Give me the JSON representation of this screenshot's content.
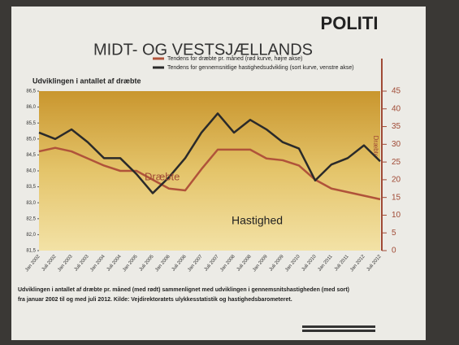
{
  "header": {
    "title": "MIDT- OG VESTSJÆLLANDS",
    "logo": "POLITI"
  },
  "caption": [
    "Udviklingen i antallet af dræbte pr. måned (med rødt) sammenlignet med udviklingen i gennemsnitshastigheden (med sort)",
    "fra januar 2002 til og med juli 2012. Kilde: Vejdirektoratets ulykkesstatistik og hastighedsbarometeret."
  ],
  "chart_data": {
    "type": "line",
    "title": "Udviklingen i antallet af dræbte",
    "categories": [
      "Jan 2002",
      "Juli 2002",
      "Jan 2003",
      "Juli 2003",
      "Jan 2004",
      "Juli 2004",
      "Jan 2005",
      "Juli 2005",
      "Jan 2006",
      "Juli 2006",
      "Jan 2007",
      "Juli 2007",
      "Jan 2008",
      "Juli 2008",
      "Jan 2009",
      "Juli 2009",
      "Jan 2010",
      "Juli 2010",
      "Jan 2011",
      "Juli 2011",
      "Jan 2012",
      "Juli 2012"
    ],
    "series": [
      {
        "name": "Tendens for dræbte pr. måned (rød kurve, højre akse)",
        "color": "#b0533a",
        "axis": "y2",
        "values": [
          28,
          29,
          28,
          26,
          24,
          22.5,
          22.5,
          20,
          17.5,
          17,
          23,
          28.5,
          28.5,
          28.5,
          26,
          25.5,
          24,
          20,
          17.5,
          16.5,
          15.5,
          14.5
        ]
      },
      {
        "name": "Tendens for gennemsnitlige hastighedsudvikling (sort kurve, venstre akse)",
        "color": "#2a2a2a",
        "values": [
          85.2,
          85.0,
          85.3,
          84.9,
          84.4,
          84.4,
          83.9,
          83.3,
          83.8,
          84.4,
          85.2,
          85.8,
          85.2,
          85.6,
          85.3,
          84.9,
          84.7,
          83.7,
          84.2,
          84.4,
          84.8,
          84.3
        ]
      }
    ],
    "ylim": [
      81.5,
      86.5
    ],
    "yticks": [
      {
        "value": 81.5,
        "label": "81,5"
      },
      {
        "value": 82,
        "label": "82,0"
      },
      {
        "value": 82.5,
        "label": "82,5"
      },
      {
        "value": 83,
        "label": "83,0"
      },
      {
        "value": 83.5,
        "label": "83,5"
      },
      {
        "value": 84,
        "label": "84,0"
      },
      {
        "value": 84.5,
        "label": "84,5"
      },
      {
        "value": 85,
        "label": "85,0"
      },
      {
        "value": 85.5,
        "label": "85,5"
      },
      {
        "value": 86,
        "label": "86,0"
      },
      {
        "value": 86.5,
        "label": "86,5"
      }
    ],
    "y2lim": [
      0,
      45
    ],
    "y2ticks": [
      0,
      5,
      10,
      15,
      20,
      25,
      30,
      35,
      40,
      45
    ],
    "y2label": "Dræbte",
    "annotations": [
      "Dræbte",
      "Hastighed"
    ]
  }
}
